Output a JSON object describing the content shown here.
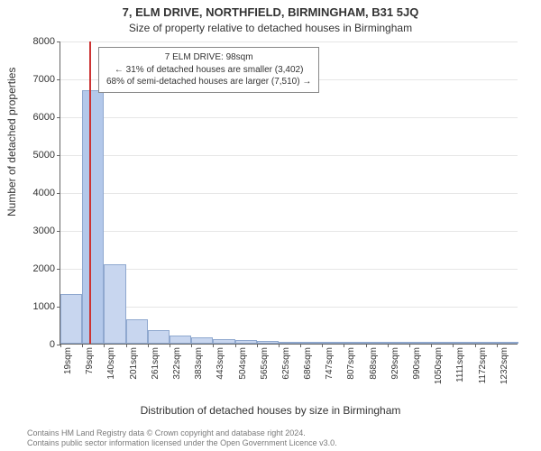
{
  "header": {
    "title": "7, ELM DRIVE, NORTHFIELD, BIRMINGHAM, B31 5JQ",
    "subtitle": "Size of property relative to detached houses in Birmingham"
  },
  "axes": {
    "ylabel": "Number of detached properties",
    "xlabel": "Distribution of detached houses by size in Birmingham",
    "ylim": [
      0,
      8000
    ],
    "ytick_step": 1000,
    "yticks": [
      0,
      1000,
      2000,
      3000,
      4000,
      5000,
      6000,
      7000,
      8000
    ]
  },
  "marker": {
    "x_sqm": 98,
    "color": "#cc3333"
  },
  "annotation": {
    "line1": "7 ELM DRIVE: 98sqm",
    "line2": "← 31% of detached houses are smaller (3,402)",
    "line3": "68% of semi-detached houses are larger (7,510) →"
  },
  "chart": {
    "type": "histogram",
    "bar_fill": "#c8d6ef",
    "bar_fill_highlight": "#b3c8ea",
    "bar_border": "#8fa8cf",
    "background_color": "#ffffff",
    "grid_color": "#e6e6e6",
    "bin_start": 19,
    "bin_width_sqm": 60.6,
    "categories": [
      "19sqm",
      "79sqm",
      "140sqm",
      "201sqm",
      "261sqm",
      "322sqm",
      "383sqm",
      "443sqm",
      "504sqm",
      "565sqm",
      "625sqm",
      "686sqm",
      "747sqm",
      "807sqm",
      "868sqm",
      "929sqm",
      "990sqm",
      "1050sqm",
      "1111sqm",
      "1172sqm",
      "1232sqm"
    ],
    "values": [
      1300,
      6700,
      2100,
      650,
      350,
      220,
      160,
      120,
      85,
      70,
      55,
      40,
      30,
      22,
      15,
      11,
      8,
      6,
      4,
      3,
      2
    ]
  },
  "footer": {
    "line1": "Contains HM Land Registry data © Crown copyright and database right 2024.",
    "line2": "Contains public sector information licensed under the Open Government Licence v3.0."
  }
}
